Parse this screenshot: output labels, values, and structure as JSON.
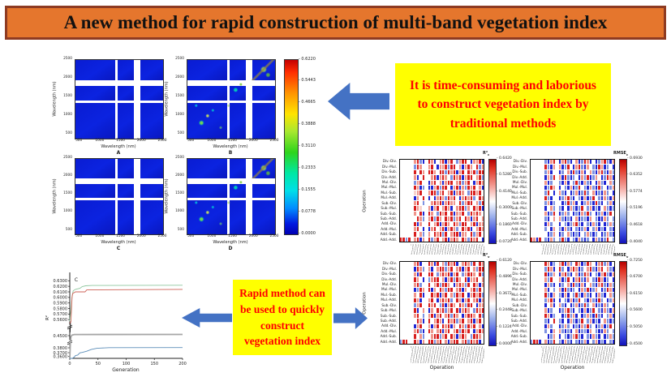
{
  "banner": {
    "title": "A new method for rapid construction of multi-band vegetation index"
  },
  "callouts": {
    "traditional": "It is time-consuming and laborious to construct vegetation index by traditional methods",
    "rapid": "Rapid method can be used to quickly construct vegetation index"
  },
  "colors": {
    "banner_bg": "#E5762D",
    "banner_border": "#8E3B22",
    "arrow_blue": "#4472C4",
    "callout_bg": "#FFFF00",
    "callout_text": "#FF0000",
    "heat_palette": {
      "R": "#d81e1e",
      "r": "#f0958b",
      "p": "#f8d3ce",
      "w": "#ffffff",
      "c": "#cdd7f4",
      "b": "#7e92e2",
      "B": "#2026d4",
      ".": "#ffffff"
    }
  },
  "chart_data": [
    {
      "type": "heatmap",
      "id": "wavelength_matrices",
      "panels": [
        {
          "label": "A",
          "speckled": false
        },
        {
          "label": "B",
          "speckled": true
        },
        {
          "label": "C",
          "speckled": false
        },
        {
          "label": "D",
          "speckled": true
        }
      ],
      "xlabel": "Wavelength (nm)",
      "ylabel": "Wavelength (nm)",
      "axis_ticks": [
        "500",
        "1000",
        "1500",
        "2000",
        "2500"
      ],
      "colormap": "jet",
      "colorbar_ticks": [
        "0.6220",
        "0.5443",
        "0.4665",
        "0.3888",
        "0.3110",
        "0.2333",
        "0.1555",
        "0.0778",
        "0.0000"
      ],
      "legend_position": "right",
      "grid": false
    },
    {
      "type": "line",
      "id": "generation_convergence",
      "panel_label": "C",
      "xlabel": "Generation",
      "ylabel": "R²",
      "x_ticks": [
        "0",
        "50",
        "100",
        "150",
        "200"
      ],
      "xlim": [
        0,
        200
      ],
      "broken_y_axis": true,
      "y_ticks_upper": [
        "0.6300",
        "0.6200",
        "0.6100",
        "0.6000",
        "0.5900",
        "0.5800",
        "0.5700",
        "0.5600"
      ],
      "y_ticks_mid": [
        "0.4500"
      ],
      "y_ticks_lower": [
        "0.3800",
        "0.3700",
        "0.3600"
      ],
      "series": [
        {
          "name": "green",
          "color": "#8fc79f",
          "points": [
            [
              0,
              0.557
            ],
            [
              2,
              0.578
            ],
            [
              4,
              0.601
            ],
            [
              6,
              0.612
            ],
            [
              10,
              0.6145
            ],
            [
              18,
              0.6165
            ],
            [
              22,
              0.6195
            ],
            [
              28,
              0.621
            ],
            [
              40,
              0.6215
            ],
            [
              200,
              0.622
            ]
          ]
        },
        {
          "name": "red",
          "color": "#cd6155",
          "points": [
            [
              0,
              0.553
            ],
            [
              2,
              0.556
            ],
            [
              4,
              0.6
            ],
            [
              5,
              0.607
            ],
            [
              10,
              0.61
            ],
            [
              27,
              0.61
            ],
            [
              30,
              0.6135
            ],
            [
              200,
              0.6145
            ]
          ]
        },
        {
          "name": "gray",
          "color": "#a6a6a6",
          "points": [
            [
              0,
              0.356
            ],
            [
              1,
              0.4
            ],
            [
              2,
              0.443
            ],
            [
              4,
              0.4525
            ],
            [
              8,
              0.4545
            ],
            [
              200,
              0.455
            ]
          ]
        },
        {
          "name": "blue",
          "color": "#5b8db8",
          "points": [
            [
              0,
              0.3495
            ],
            [
              2,
              0.352
            ],
            [
              5,
              0.3555
            ],
            [
              8,
              0.3585
            ],
            [
              10,
              0.3625
            ],
            [
              14,
              0.3635
            ],
            [
              18,
              0.3695
            ],
            [
              22,
              0.3705
            ],
            [
              30,
              0.373
            ],
            [
              38,
              0.3765
            ],
            [
              48,
              0.379
            ],
            [
              55,
              0.3795
            ],
            [
              70,
              0.3805
            ],
            [
              200,
              0.381
            ]
          ]
        }
      ]
    },
    {
      "type": "heatmap",
      "id": "operation_matrices",
      "xlabel": "Operation",
      "ylabel": "Operation",
      "colormap": "blue-white-red",
      "row_labels": [
        "Div.-Div.",
        "Div.-Mul.",
        "Div.-Sub.",
        "Div.-Add.",
        "Mul.-Div.",
        "Mul.-Mul.",
        "Mul.-Sub.",
        "Mul.-Add.",
        "Sub.-Div.",
        "Sub.-Mul.",
        "Sub.-Sub.",
        "Sub.-Add.",
        "Add.-Div.",
        "Add.-Mul.",
        "Add.-Sub.",
        "Add.-Add."
      ],
      "heatmaps": [
        {
          "title_main": "R²",
          "title_sub": "c",
          "colorbar_ticks": [
            "0.6420",
            "0.5280",
            "0.4140",
            "0.3000",
            "0.1860",
            "0.0720"
          ],
          "cells": [
            "wwww.rRbB.RrBwrRBrRwbrRRwBrrRB",
            "wwww.bRrw.rRwBrrRbRRwrBrRrwRbr",
            "wwww.RwRr.RRrwRRbRrRBrRwRrRbRR",
            "wwww.rBwR.wrRBrRrwbRrRBrRRwrRb",
            "wwww.brRw.BrRwrBrRRwrRbrRwBrRr",
            "wwww.RrBb.BBrRbRRwBrRBrbRrRwrB",
            "wwww.prRw.rRRbrRwrRBrRrwbRRrRw",
            "wwww.BrwR.BwBrRrbRrRwBrRrRbwRr",
            "wwww.rRwb.wrRrRBrRrrwRbrRRwrbR",
            "wwww.Rrpw.rBrRwrRrBwrRRbrwRrRB",
            "wwww.rwRB.RrwbRrRwRBrrRwbRrRrw",
            "wwww.wRrb.rRbRrwRrRbrRwRrBrRwr",
            "wwww.RBrw.RwrRBrRrwRrbRRwrRBrr",
            "wwww.rRwB.BrRwrRBrRrbwRrRBwrRr",
            "wwww.Rwrb.rwRrRbRwrRRBrrwRbrRw",
            "RRbR.rRBr.RbrRwrRBrRrwRrbRrRwB"
          ]
        },
        {
          "title_main": "RMSE",
          "title_sub": "c",
          "colorbar_ticks": [
            "0.6930",
            "0.6352",
            "0.5774",
            "0.5196",
            "0.4618",
            "0.4040"
          ],
          "cells": [
            "wwww.bBrR.BrRbBwrBbRrBwBbrRbBr",
            "wwww.RbBr.rBbRwBrRbBrwbBRrBbwB",
            "wwww.brBw.BbwrBRbBrBwrbBrRbBrb",
            "wwww.BrbR.rBRbBbwBrbRBbrwBbRrB",
            "wwww.rBbw.bBrBwbRbBrbBwBrbBwrb",
            "wwww.BbRr.BwbBrBbRwbBrbBRbwBbr",
            "wwww.bRwB.rbBwBbrBbRbwrBbBrbwB",
            "wwww.RbBw.BbrRbBwbBrBbRwbBrbBr",
            "wwww.brBb.wBbRbrBwBbrbBRbBwbrB",
            "wwww.Bwrb.bBwBrbBbRwbrBbBwrbBb",
            "wwww.rBbR.BbrbwBbBrbRbwBbrBbRw",
            "wwww.bBwr.rbBbBwrBbbBrwbBBrbwb",
            "wwww.Brbw.BwbBbrRbBwbBrbBwBbrb",
            "wwww.bwBr.bBrbBwbBbrBwbrBbBwbB",
            "wwww.wBbr.BbwrbBbBwbrbBbwBbrbB",
            "RrBR.bBrb.bRbBwbBrbBbwBrbBbRwb"
          ]
        },
        {
          "title_main": "R²",
          "title_sub": "v",
          "colorbar_ticks": [
            "0.6120",
            "0.4896",
            "0.3672",
            "0.2448",
            "0.1224",
            "0.0000"
          ],
          "cells": [
            "wwww.rRBw.RrBRwrbRrRBwrRrbRwRr",
            "wwww.BRrb.rBwrRRbrRwrRBrRwrbRR",
            "wwww.rBRw.RRwbrRrRBrRwbrRRrwRb",
            "wwww.RrwB.brRRwrBrRbRrwRBrrRwr",
            "wwww.rRbw.RwrRbRRrwBrRrbRwRrBr",
            "wwww.BbRr.RBrwRrbRRwrRBrwrRbRw",
            "wwww.rwRB.wRrRBrRwrbRrRwBrRrRb",
            "wwww.RrBw.rRwBrRrRbwRrBrRwrRBr",
            "wwww.brRw.RrRwbRBrRrwRrbRRwBrr",
            "wwww.RBwr.BrwRrRbrRwRBrRrwbRrR",
            "wwww.rRwb.rRBrRwrRbRrwBrRRrwRb",
            "wwww.wRrB.RwrRrBwRrRbrRwrRBrRw",
            "wwww.BrRw.rBrRwRrRBrwRrbRrRwrB",
            "wwww.rRbB.RrwrRBrRwrRbRrRwBrRr",
            "wwww.Rwrb.wrRRbrRwRrBrRrwbRRrw",
            "bRRw.RrBr.RRbrRwrBrRRwrRbRrRBw"
          ]
        },
        {
          "title_main": "RMSE",
          "title_sub": "v",
          "colorbar_ticks": [
            "0.7250",
            "0.6700",
            "0.6150",
            "0.5600",
            "0.5050",
            "0.4500"
          ],
          "cells": [
            "wwww.RrBb.rRBrbwRrBbRrwBrRbrBw",
            "wwww.bRrB.RbwBrRrBbwrRbBrRwrbB",
            "wwww.RBbr.BrRbBwrBbRrBwbBrRbBr",
            "wwww.rbRw.rBbRwBrRbBrwbBRrBbwB",
            "wwww.BrbB.BbwrBRbBrBwrbBrRbBrb",
            "wwww.rBwb.rBRbBbwBrbRBbrwBbRrB",
            "wwww.RbBr.bBrBwbRbBrbBwBrbBwrb",
            "wwww.brRB.BwbBrBbRwbBrbBRbwBbr",
            "wwww.BwrB.rbBwBbrBbRbwrBbBrbwB",
            "wwww.rBbw.BbrRbBwbBrBbRwbBrbBr",
            "wwww.RrBb.wBbRbrBwBbrbBRbBwbrB",
            "wwww.bBwR.bBwBrbBbRwbrBbBwrbBb",
            "wwww.Brbw.BbrbwBbBrbRbwBbrBbRw",
            "wwww.bwBr.rbBbBwrBbbBrwbBBrbwb",
            "wwww.wBbr.BwbBbrRbBwbBrbBwBbrb",
            "bRRB.rBbR.bBrbBwbBbrBwbrBbBwbB"
          ]
        }
      ]
    }
  ]
}
